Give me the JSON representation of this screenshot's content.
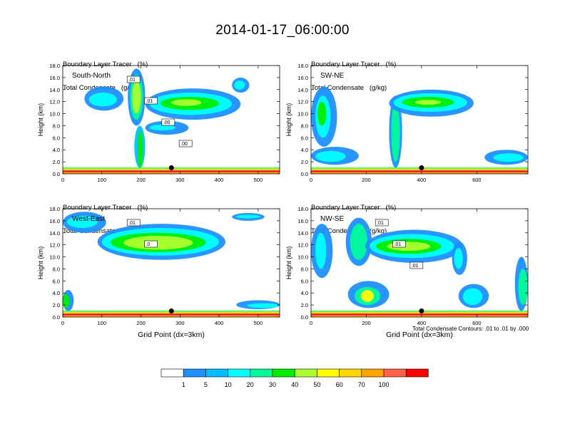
{
  "title": "2014-01-17_06:00:00",
  "panel_header": {
    "line1": "Boundary Layer Tracer   (%)",
    "line2": "Total Condensate   (g/kg)"
  },
  "axis": {
    "ylabel": "Height (km)",
    "xlabel": "Grid Point (dx=3km)"
  },
  "footnote": "Total Condensate Contours: .01 to .01 by .000",
  "colorbar": {
    "colors": [
      "#ffffff",
      "#1e90ff",
      "#00bfff",
      "#00ffff",
      "#00fa9a",
      "#00ee00",
      "#adff2f",
      "#ffff00",
      "#ffd700",
      "#ffa500",
      "#ff6347",
      "#ff0000"
    ],
    "labels": [
      "1",
      "5",
      "10",
      "20",
      "30",
      "40",
      "50",
      "60",
      "70",
      "100"
    ]
  },
  "chart_data": [
    {
      "type": "heatmap",
      "panel_label": "South-North",
      "ylabel": "Height (km)",
      "xlim": [
        0,
        555
      ],
      "ylim": [
        0,
        18
      ],
      "xticks": [
        0,
        100,
        200,
        300,
        400,
        500
      ],
      "yticks": [
        "0.0",
        "2.0",
        "4.0",
        "6.0",
        "8.0",
        "10.0",
        "12.0",
        "14.0",
        "16.0",
        "18.0"
      ],
      "contour_labels": [
        ".01",
        ".01",
        ".00",
        ".00"
      ],
      "marker_x": 278,
      "marker_y": 1.0
    },
    {
      "type": "heatmap",
      "panel_label": "SW-NE",
      "ylabel": "Height (km)",
      "xlim": [
        0,
        785
      ],
      "ylim": [
        0,
        18
      ],
      "xticks": [
        0,
        200,
        400,
        600
      ],
      "yticks": [
        "0.0",
        "2.0",
        "4.0",
        "6.0",
        "8.0",
        "10.0",
        "12.0",
        "14.0",
        "16.0",
        "18.0"
      ],
      "contour_labels": [],
      "marker_x": 400,
      "marker_y": 1.0
    },
    {
      "type": "heatmap",
      "panel_label": "West-East",
      "ylabel": "Height (km)",
      "xlabel": "Grid Point (dx=3km)",
      "xlim": [
        0,
        555
      ],
      "ylim": [
        0,
        18
      ],
      "xticks": [
        0,
        100,
        200,
        300,
        400,
        500
      ],
      "yticks": [
        "0.0",
        "2.0",
        "4.0",
        "6.0",
        "8.0",
        "10.0",
        "12.0",
        "14.0",
        "16.0",
        "18.0"
      ],
      "contour_labels": [
        ".01",
        ".0"
      ],
      "marker_x": 278,
      "marker_y": 1.0
    },
    {
      "type": "heatmap",
      "panel_label": "NW-SE",
      "ylabel": "Height (km)",
      "xlabel": "Grid Point (dx=3km)",
      "xlim": [
        0,
        785
      ],
      "ylim": [
        0,
        18
      ],
      "xticks": [
        0,
        200,
        400,
        600
      ],
      "yticks": [
        "0.0",
        "2.0",
        "4.0",
        "6.0",
        "8.0",
        "10.0",
        "12.0",
        "14.0",
        "16.0",
        "18.0"
      ],
      "contour_labels": [
        ".01",
        ".01",
        ".01"
      ],
      "marker_x": 400,
      "marker_y": 1.0
    }
  ]
}
